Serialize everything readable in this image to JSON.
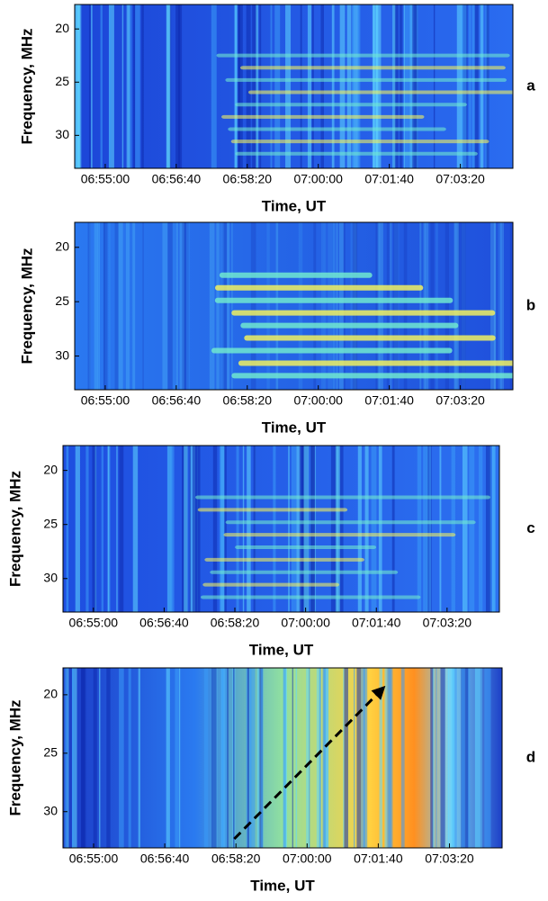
{
  "chart_data": [
    {
      "type": "spectrogram",
      "label": "a",
      "xlabel": "Time, UT",
      "ylabel": "Frequency, MHz",
      "xlim": [
        24857,
        25474
      ],
      "xticks": [
        {
          "value": 24900,
          "label": "06:55:00"
        },
        {
          "value": 25000,
          "label": "06:56:40"
        },
        {
          "value": 25100,
          "label": "06:58:20"
        },
        {
          "value": 25200,
          "label": "07:00:00"
        },
        {
          "value": 25300,
          "label": "07:01:40"
        },
        {
          "value": 25400,
          "label": "07:03:20"
        }
      ],
      "ylim": [
        17.7,
        33.1
      ],
      "yticks": [
        20,
        25,
        30
      ],
      "y_inverted": true
    },
    {
      "type": "spectrogram",
      "label": "b",
      "xlabel": "Time, UT",
      "ylabel": "Frequency, MHz",
      "xlim": [
        24857,
        25474
      ],
      "xticks": [
        {
          "value": 24900,
          "label": "06:55:00"
        },
        {
          "value": 25000,
          "label": "06:56:40"
        },
        {
          "value": 25100,
          "label": "06:58:20"
        },
        {
          "value": 25200,
          "label": "07:00:00"
        },
        {
          "value": 25300,
          "label": "07:01:40"
        },
        {
          "value": 25400,
          "label": "07:03:20"
        }
      ],
      "ylim": [
        17.7,
        33.1
      ],
      "yticks": [
        20,
        25,
        30
      ],
      "y_inverted": true
    },
    {
      "type": "spectrogram",
      "label": "c",
      "xlabel": "Time, UT",
      "ylabel": "Frequency, MHz",
      "xlim": [
        24857,
        25474
      ],
      "xticks": [
        {
          "value": 24900,
          "label": "06:55:00"
        },
        {
          "value": 25000,
          "label": "06:56:40"
        },
        {
          "value": 25100,
          "label": "06:58:20"
        },
        {
          "value": 25200,
          "label": "07:00:00"
        },
        {
          "value": 25300,
          "label": "07:01:40"
        },
        {
          "value": 25400,
          "label": "07:03:20"
        }
      ],
      "ylim": [
        17.7,
        33.1
      ],
      "yticks": [
        20,
        25,
        30
      ],
      "y_inverted": true
    },
    {
      "type": "spectrogram",
      "label": "d",
      "xlabel": "Time, UT",
      "ylabel": "Frequency, MHz",
      "xlim": [
        24857,
        25474
      ],
      "xticks": [
        {
          "value": 24900,
          "label": "06:55:00"
        },
        {
          "value": 25000,
          "label": "06:56:40"
        },
        {
          "value": 25100,
          "label": "06:58:20"
        },
        {
          "value": 25200,
          "label": "07:00:00"
        },
        {
          "value": 25300,
          "label": "07:01:40"
        },
        {
          "value": 25400,
          "label": "07:03:20"
        }
      ],
      "ylim": [
        17.7,
        33.1
      ],
      "yticks": [
        20,
        25,
        30
      ],
      "y_inverted": true
    }
  ]
}
